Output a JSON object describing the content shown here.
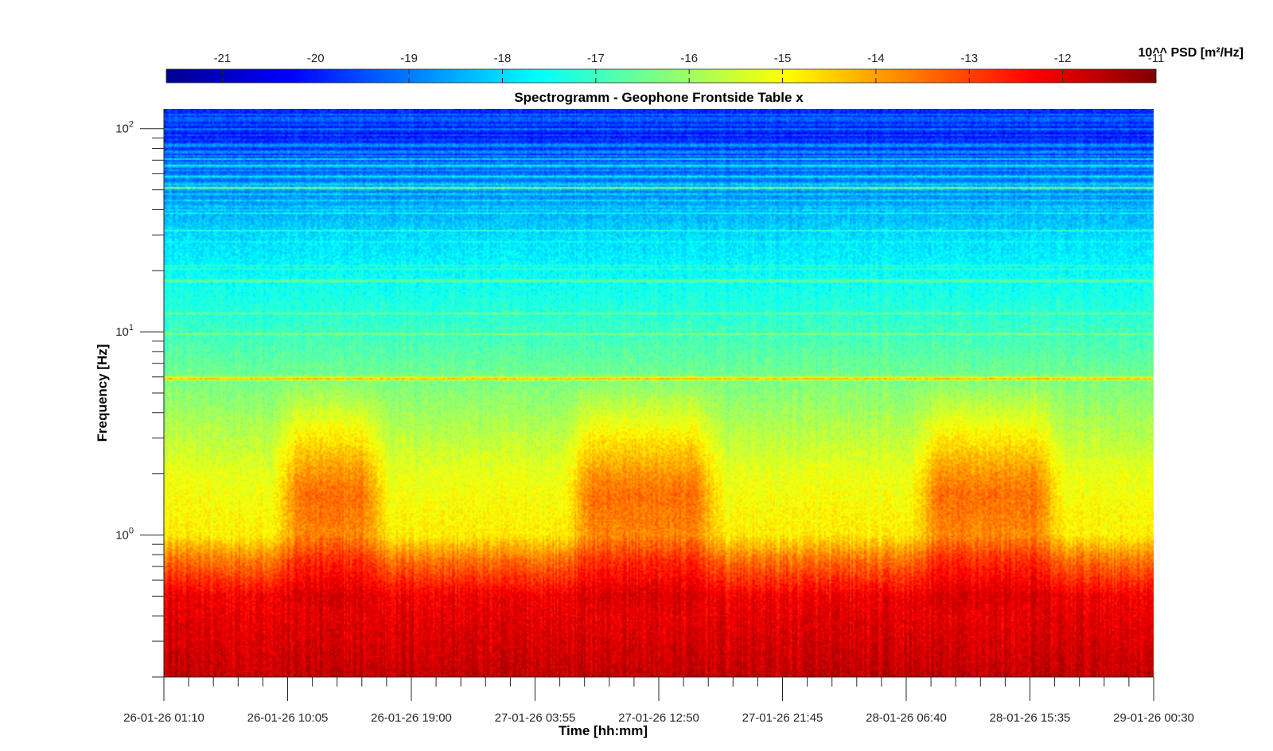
{
  "chart_data": {
    "type": "heatmap",
    "title": "Spectrogramm - Geophone Frontside Table x",
    "xlabel": "Time [hh:mm]",
    "ylabel": "Frequency [Hz]",
    "x_ticks": [
      "26-01-26 01:10",
      "26-01-26 10:05",
      "26-01-26 19:00",
      "27-01-26 03:55",
      "27-01-26 12:50",
      "27-01-26 21:45",
      "28-01-26 06:40",
      "28-01-26 15:35",
      "29-01-26 00:30"
    ],
    "x_range": [
      "26-01-26 01:10",
      "29-01-26 00:30"
    ],
    "y_scale": "log",
    "y_range": [
      0.2,
      125
    ],
    "y_ticks": [
      {
        "value": 1,
        "base": "10",
        "exp": "0"
      },
      {
        "value": 10,
        "base": "10",
        "exp": "1"
      },
      {
        "value": 100,
        "base": "10",
        "exp": "2"
      }
    ],
    "colorbar": {
      "label": "10^^ PSD [m²/Hz]",
      "location": "top",
      "colormap": "jet",
      "range": [
        -21.6,
        -11
      ],
      "ticks": [
        "-21",
        "-20",
        "-19",
        "-18",
        "-17",
        "-16",
        "-15",
        "-14",
        "-13",
        "-12",
        "-11"
      ]
    },
    "features": {
      "persistent_line_hz": 5.9,
      "active_periods": [
        {
          "start": "26-01-26 09:00",
          "end": "26-01-26 17:30"
        },
        {
          "start": "27-01-26 06:00",
          "end": "27-01-26 17:30"
        },
        {
          "start": "28-01-26 07:00",
          "end": "28-01-26 18:00"
        }
      ],
      "approx_psd_exponent_by_frequency": [
        {
          "hz": 0.2,
          "value": -11.7
        },
        {
          "hz": 0.5,
          "value": -12.2
        },
        {
          "hz": 0.75,
          "value": -13.5
        },
        {
          "hz": 1.0,
          "value": -14.8
        },
        {
          "hz": 2.0,
          "value": -15.2
        },
        {
          "hz": 5.0,
          "value": -16.2
        },
        {
          "hz": 10.0,
          "value": -17.0
        },
        {
          "hz": 30.0,
          "value": -18.0
        },
        {
          "hz": 60.0,
          "value": -19.2
        },
        {
          "hz": 100.0,
          "value": -20.3
        },
        {
          "hz": 125.0,
          "value": -19.8
        }
      ]
    }
  }
}
